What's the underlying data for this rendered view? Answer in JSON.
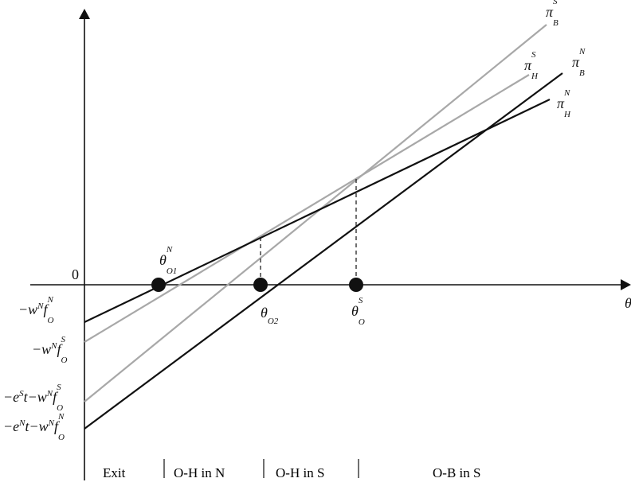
{
  "diagram": {
    "origin_label": "0",
    "x_axis_label": "θ",
    "colors": {
      "north": "#111111",
      "south": "#a8a8a8"
    },
    "intercept_labels": [
      {
        "id": "wNfN",
        "main": "−w",
        "sup1": "N",
        "f": "f",
        "sup2": "N",
        "sub": "O"
      },
      {
        "id": "wNfS",
        "main": "−w",
        "sup1": "N",
        "f": "f",
        "sup2": "S",
        "sub": "O"
      },
      {
        "id": "eSt",
        "pre": "−e",
        "pre_sup": "S",
        "mid": "t−w",
        "sup1": "N",
        "f": "f",
        "sup2": "S",
        "sub": "O"
      },
      {
        "id": "eNt",
        "pre": "−e",
        "pre_sup": "N",
        "mid": "t−w",
        "sup1": "N",
        "f": "f",
        "sup2": "N",
        "sub": "O"
      }
    ],
    "line_labels": [
      {
        "id": "piBS",
        "base": "π",
        "sup": "S",
        "sub": "B"
      },
      {
        "id": "piHS",
        "base": "π",
        "sup": "S",
        "sub": "H"
      },
      {
        "id": "piBN",
        "base": "π",
        "sup": "N",
        "sub": "B"
      },
      {
        "id": "piHN",
        "base": "π",
        "sup": "N",
        "sub": "H"
      }
    ],
    "thresholds": [
      {
        "id": "O1",
        "base": "θ",
        "sup": "N",
        "sub": "O1"
      },
      {
        "id": "O2",
        "base": "θ",
        "sup": "",
        "sub": "O2"
      },
      {
        "id": "OS",
        "base": "θ",
        "sup": "S",
        "sub": "O"
      }
    ],
    "regions": [
      "Exit",
      "O-H in N",
      "O-H in S",
      "O-B in S"
    ]
  }
}
